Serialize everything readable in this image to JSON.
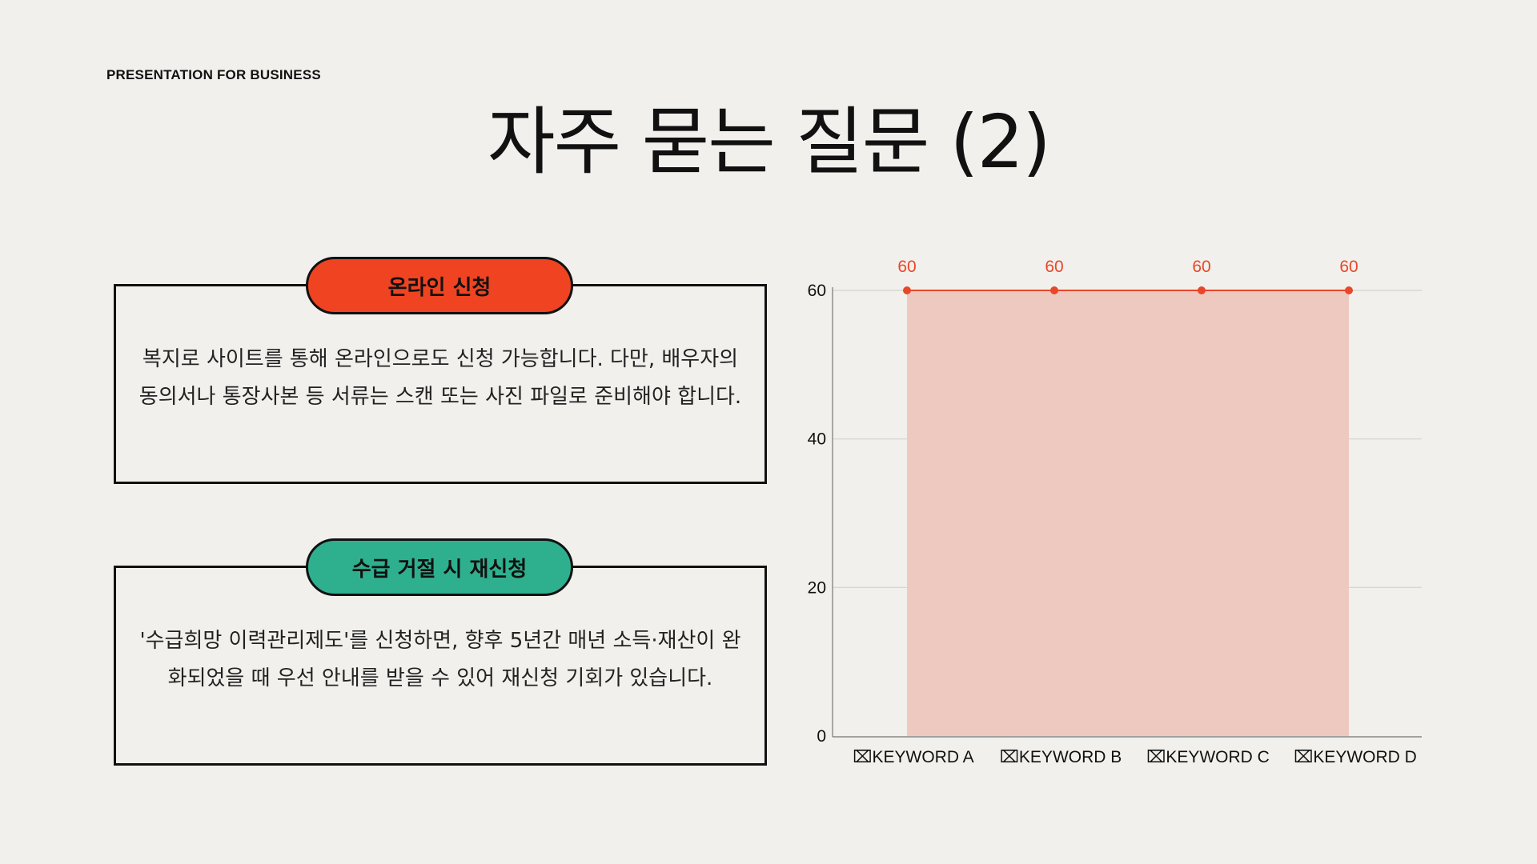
{
  "header": {
    "eyebrow": "PRESENTATION FOR BUSINESS",
    "title": "자주 묻는 질문 (2)"
  },
  "cards": [
    {
      "tag": "온라인 신청",
      "tag_color": "#ef4322",
      "lines": [
        "복지로 사이트를 통해 온라인으로도 신청 가능합니다. 다만, 배우자의",
        "동의서나 통장사본 등 서류는 스캔 또는 사진 파일로 준비해야 합니다."
      ]
    },
    {
      "tag": "수급 거절 시 재신청",
      "tag_color": "#2eb08f",
      "lines": [
        "'수급희망 이력관리제도'를 신청하면, 향후 5년간 매년 소득·재산이 완",
        "화되었을 때 우선 안내를 받을 수 있어 재신청 기회가 있습니다."
      ]
    }
  ],
  "chart_data": {
    "type": "area",
    "categories": [
      "KEYWORD A",
      "KEYWORD B",
      "KEYWORD C",
      "KEYWORD D"
    ],
    "category_prefix_glyph": "⌧",
    "series": [
      {
        "values": [
          60,
          60,
          60,
          60
        ]
      }
    ],
    "data_labels": [
      "60",
      "60",
      "60",
      "60"
    ],
    "yticks": [
      "0",
      "20",
      "40",
      "60"
    ],
    "ylim": [
      0,
      60
    ],
    "grid": true,
    "legend": "none",
    "colors": {
      "line": "#e8472a",
      "fill": "#eec9c0",
      "label": "#e8472a",
      "grid": "#d4d2cd",
      "axis": "#888888"
    }
  }
}
